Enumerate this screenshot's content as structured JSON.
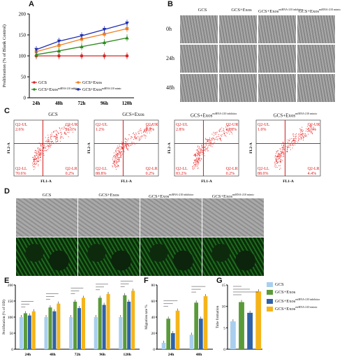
{
  "panel_labels": {
    "A": "A",
    "B": "B",
    "C": "C",
    "D": "D",
    "E": "E",
    "F": "F",
    "G": "G"
  },
  "panelA": {
    "ylabel": "Proliferation (% of Blank Control)",
    "x_ticks": [
      "24h",
      "48h",
      "72h",
      "96h",
      "120h"
    ],
    "y_ticks": [
      "0",
      "50",
      "100",
      "150",
      "200"
    ],
    "legend": [
      {
        "text": "GCS",
        "sup": "",
        "color": "#d62728",
        "marker": "circle"
      },
      {
        "text": "GCS+Exos",
        "sup": "",
        "color": "#ef7f22",
        "marker": "square"
      },
      {
        "text": "GCS+Exos",
        "sup": "miRNA-210 inhibitor",
        "color": "#2e8b1e",
        "marker": "triangle"
      },
      {
        "text": "GCS+Exos",
        "sup": "miRNA-210 mimic",
        "color": "#1f2fb4",
        "marker": "triangle-down"
      }
    ]
  },
  "panelB": {
    "columns": [
      {
        "text": "GCS",
        "sup": ""
      },
      {
        "text": "GCS+Exos",
        "sup": ""
      },
      {
        "text": "GCS+Exos",
        "sup": "miRNA-210 inhibitor"
      },
      {
        "text": "GCS+Exos",
        "sup": "miRNA-210 mimic"
      }
    ],
    "rows": [
      "0h",
      "24h",
      "48h"
    ]
  },
  "panelC": {
    "plots": [
      {
        "title": "GCS",
        "sup": "",
        "ul": "Q2-UL",
        "ul_val": "2.6%",
        "ur": "Q2-UR",
        "ur_val": "26.6%",
        "ll": "Q2-LL",
        "ll_val": "70.6%",
        "lr": "Q2-LR",
        "lr_val": "0.2%"
      },
      {
        "title": "GCS+Exos",
        "sup": "",
        "ul": "Q2-UL",
        "ul_val": "1.2%",
        "ur": "Q2-UR",
        "ur_val": "9.8%",
        "ll": "Q2-LL",
        "ll_val": "88.8%",
        "lr": "Q2-LR",
        "lr_val": "0.2%"
      },
      {
        "title": "GCS+Exos",
        "sup": "miRNA-210 inhibitor",
        "ul": "Q2-UL",
        "ul_val": "2.8%",
        "ur": "Q2-UR",
        "ur_val": "13.8%",
        "ll": "Q2-LL",
        "ll_val": "83.2%",
        "lr": "Q2-LR",
        "lr_val": "0.2%"
      },
      {
        "title": "GCS+Exos",
        "sup": "miRNA-210 mimic",
        "ul": "Q2-UL",
        "ul_val": "1.0%",
        "ur": "Q2-UR",
        "ur_val": "6.6%",
        "ll": "Q2-LL",
        "ll_val": "88.0%",
        "lr": "Q2-LR",
        "lr_val": "4.4%"
      }
    ],
    "xlabel": "FL1-A",
    "ylabel": "FL2-A"
  },
  "panelD": {
    "columns": [
      {
        "text": "GCS",
        "sup": ""
      },
      {
        "text": "GCS+Exos",
        "sup": ""
      },
      {
        "text": "GCS+Exos",
        "sup": "miRNA-210 inhibitor"
      },
      {
        "text": "GCS+Exos",
        "sup": "miRNA-210 mimic"
      }
    ]
  },
  "panelE": {
    "ylabel": "Proliferation (% of OD)",
    "x_ticks": [
      "24h",
      "48h",
      "72h",
      "96h",
      "120h"
    ],
    "y_ticks": [
      "0",
      "50",
      "100",
      "150",
      "200"
    ]
  },
  "panelF": {
    "ylabel": "Migration rate %",
    "x_ticks": [
      "24h",
      "48h"
    ],
    "y_ticks": [
      "0",
      "20",
      "40",
      "60",
      "80"
    ]
  },
  "panelG": {
    "ylabel": "Tube formation",
    "y_ticks": [
      "0",
      "5",
      "10",
      "15"
    ]
  },
  "legendG": [
    {
      "text": "GCS",
      "sup": "",
      "color": "#a9cfee"
    },
    {
      "text": "GCS+Exos",
      "sup": "",
      "color": "#5a9a3a"
    },
    {
      "text": "GCS+Exos",
      "sup": "miRNA-210 inhibitor",
      "color": "#2f62a8"
    },
    {
      "text": "GCS+Exos",
      "sup": "miRNA-210 mimic",
      "color": "#f4b41a"
    }
  ],
  "chart_data": [
    {
      "type": "line",
      "x": [
        "24h",
        "48h",
        "72h",
        "96h",
        "120h"
      ],
      "ylim": [
        0,
        200
      ],
      "ylabel": "Proliferation (% of Blank Control)",
      "series": [
        {
          "name": "GCS",
          "values": [
            100,
            100,
            100,
            100,
            100
          ]
        },
        {
          "name": "GCS+Exos",
          "values": [
            110,
            125,
            140,
            152,
            165
          ]
        },
        {
          "name": "GCS+Exos miRNA-210 inhibitor",
          "values": [
            103,
            112,
            122,
            132,
            143
          ]
        },
        {
          "name": "GCS+Exos miRNA-210 mimic",
          "values": [
            115,
            135,
            148,
            163,
            178
          ]
        }
      ]
    },
    {
      "type": "bar",
      "categories": [
        "24h",
        "48h",
        "72h",
        "96h",
        "120h"
      ],
      "ylim": [
        0,
        200
      ],
      "ylabel": "Proliferation (% of OD)",
      "series": [
        {
          "name": "GCS",
          "values": [
            100,
            100,
            100,
            100,
            100
          ]
        },
        {
          "name": "GCS+Exos",
          "values": [
            112,
            130,
            148,
            160,
            168
          ]
        },
        {
          "name": "GCS+Exos miRNA-210 inhibitor",
          "values": [
            105,
            118,
            128,
            138,
            148
          ]
        },
        {
          "name": "GCS+Exos miRNA-210 mimic",
          "values": [
            118,
            142,
            160,
            172,
            182
          ]
        }
      ]
    },
    {
      "type": "bar",
      "categories": [
        "24h",
        "48h"
      ],
      "ylim": [
        0,
        80
      ],
      "ylabel": "Migration rate %",
      "series": [
        {
          "name": "GCS",
          "values": [
            8,
            18
          ]
        },
        {
          "name": "GCS+Exos",
          "values": [
            38,
            58
          ]
        },
        {
          "name": "GCS+Exos miRNA-210 inhibitor",
          "values": [
            20,
            38
          ]
        },
        {
          "name": "GCS+Exos miRNA-210 mimic",
          "values": [
            48,
            66
          ]
        }
      ]
    },
    {
      "type": "bar",
      "categories": [
        "GCS",
        "GCS+Exos",
        "GCS+Exos miRNA-210 inhibitor",
        "GCS+Exos miRNA-210 mimic"
      ],
      "values": [
        6.5,
        11,
        8.5,
        13.5
      ],
      "ylim": [
        0,
        15
      ],
      "ylabel": "Tube formation"
    }
  ]
}
